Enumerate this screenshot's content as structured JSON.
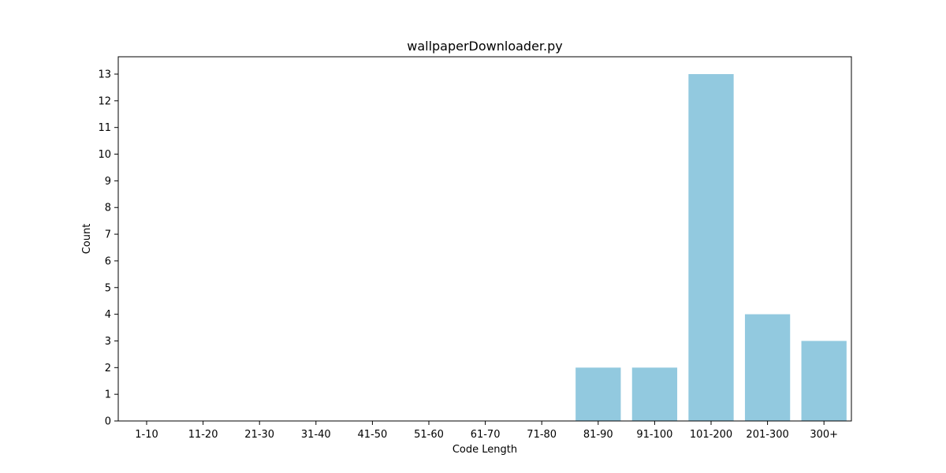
{
  "chart_data": {
    "type": "bar",
    "title": "wallpaperDownloader.py",
    "xlabel": "Code Length",
    "ylabel": "Count",
    "categories": [
      "1-10",
      "11-20",
      "21-30",
      "31-40",
      "41-50",
      "51-60",
      "61-70",
      "71-80",
      "81-90",
      "91-100",
      "101-200",
      "201-300",
      "300+"
    ],
    "values": [
      0,
      0,
      0,
      0,
      0,
      0,
      0,
      0,
      2,
      2,
      13,
      4,
      3
    ],
    "ylim": [
      0,
      13.65
    ],
    "yticks": [
      0,
      1,
      2,
      3,
      4,
      5,
      6,
      7,
      8,
      9,
      10,
      11,
      12,
      13
    ],
    "bar_color": "#92c9df",
    "grid": false,
    "legend": "none"
  }
}
